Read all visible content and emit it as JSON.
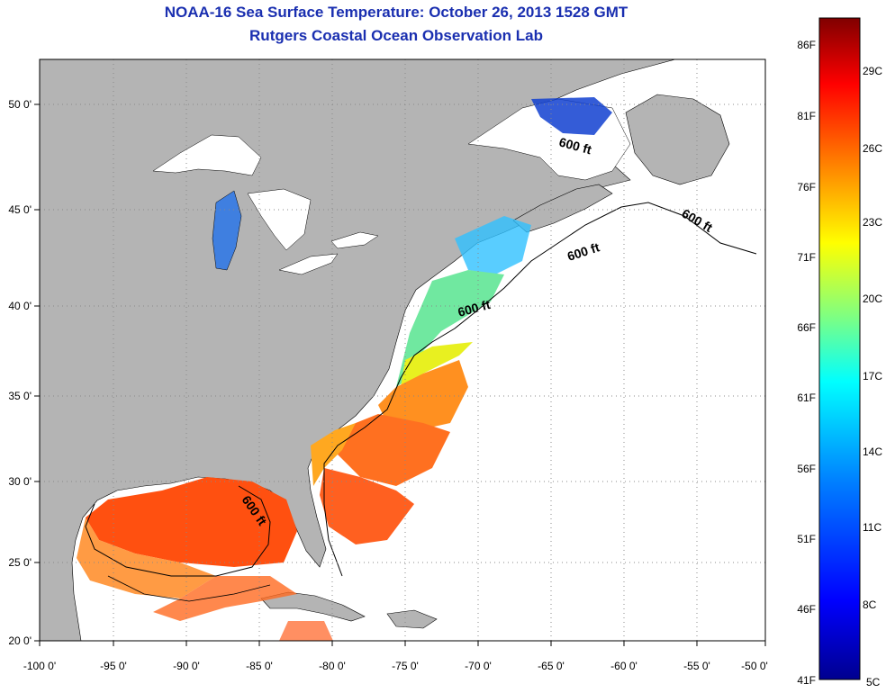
{
  "title": "NOAA-16 Sea Surface Temperature:  October 26, 2013 1528 GMT",
  "subtitle": "Rutgers Coastal Ocean Observation Lab",
  "map": {
    "lon_range": [
      -100,
      -50
    ],
    "lat_range": [
      20,
      52.5
    ],
    "x_tick_labels": [
      "-100 0'",
      "-95 0'",
      "-90 0'",
      "-85 0'",
      "-80 0'",
      "-75 0'",
      "-70 0'",
      "-65 0'",
      "-60 0'",
      "-55 0'",
      "-50 0'"
    ],
    "y_tick_labels": [
      "50 0'",
      "45 0'",
      "40 0'",
      "35 0'",
      "30 0'",
      "25 0'",
      "20 0'"
    ],
    "contour_label": "600 ft",
    "land_color": "#b4b4b4",
    "no_data_color": "#ffffff"
  },
  "colorbar": {
    "fahrenheit_labels": [
      "86F",
      "81F",
      "76F",
      "71F",
      "66F",
      "61F",
      "56F",
      "51F",
      "46F",
      "41F"
    ],
    "celsius_labels": [
      "29C",
      "26C",
      "23C",
      "20C",
      "17C",
      "14C",
      "11C",
      "8C",
      "5C"
    ],
    "range_c": [
      5,
      30.5
    ],
    "colors": [
      "#00008f",
      "#0000ff",
      "#0080ff",
      "#00ffff",
      "#80ff80",
      "#ffff00",
      "#ff8000",
      "#ff0000",
      "#800000"
    ]
  }
}
